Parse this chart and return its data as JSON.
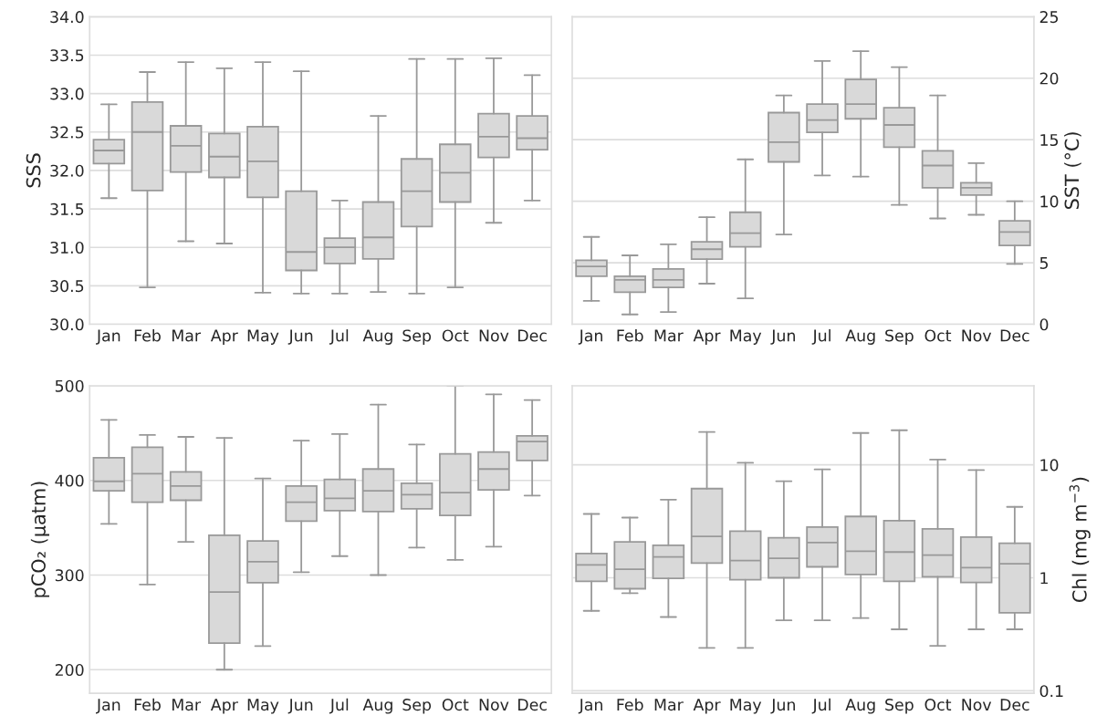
{
  "chart_data": [
    {
      "type": "box",
      "categories": [
        "Jan",
        "Feb",
        "Mar",
        "Apr",
        "May",
        "Jun",
        "Jul",
        "Aug",
        "Sep",
        "Oct",
        "Nov",
        "Dec"
      ],
      "ylabel": "SSS",
      "ylim": [
        30.0,
        34.0
      ],
      "yticks": [
        {
          "value": 30,
          "label": "30.0"
        },
        30.5,
        {
          "value": 31,
          "label": "31.0"
        },
        31.5,
        {
          "value": 32,
          "label": "32.0"
        },
        32.5,
        {
          "value": 33,
          "label": "33.0"
        },
        33.5,
        {
          "value": 34,
          "label": "34.0"
        }
      ],
      "grid": "y",
      "series": [
        {
          "color": "#d9d9d9",
          "axis": "y",
          "boxes": [
            {
              "low": 31.64,
              "q1": 32.09,
              "median": 32.26,
              "q3": 32.4,
              "high": 32.86
            },
            {
              "low": 30.48,
              "q1": 31.74,
              "median": 32.5,
              "q3": 32.89,
              "high": 33.28
            },
            {
              "low": 31.08,
              "q1": 31.98,
              "median": 32.32,
              "q3": 32.58,
              "high": 33.41
            },
            {
              "low": 31.05,
              "q1": 31.91,
              "median": 32.18,
              "q3": 32.48,
              "high": 33.33
            },
            {
              "low": 30.41,
              "q1": 31.65,
              "median": 32.12,
              "q3": 32.57,
              "high": 33.41
            },
            {
              "low": 30.4,
              "q1": 30.7,
              "median": 30.94,
              "q3": 31.73,
              "high": 33.29
            },
            {
              "low": 30.4,
              "q1": 30.79,
              "median": 31.0,
              "q3": 31.12,
              "high": 31.61
            },
            {
              "low": 30.42,
              "q1": 30.85,
              "median": 31.13,
              "q3": 31.59,
              "high": 32.71
            },
            {
              "low": 30.4,
              "q1": 31.27,
              "median": 31.73,
              "q3": 32.15,
              "high": 33.45
            },
            {
              "low": 30.48,
              "q1": 31.59,
              "median": 31.97,
              "q3": 32.34,
              "high": 33.45
            },
            {
              "low": 31.32,
              "q1": 32.17,
              "median": 32.44,
              "q3": 32.74,
              "high": 33.46
            },
            {
              "low": 31.61,
              "q1": 32.27,
              "median": 32.42,
              "q3": 32.71,
              "high": 33.24
            }
          ]
        }
      ]
    },
    {
      "type": "box",
      "categories": [
        "Jan",
        "Feb",
        "Mar",
        "Apr",
        "May",
        "Jun",
        "Jul",
        "Aug",
        "Sep",
        "Oct",
        "Nov",
        "Dec"
      ],
      "y2label": "SST (°C)",
      "y2lim": [
        0,
        25
      ],
      "y2ticks": [
        0,
        5,
        10,
        15,
        20,
        25
      ],
      "grid": "y",
      "series": [
        {
          "color": "#d9d9d9",
          "axis": "y2",
          "boxes": [
            {
              "low": 1.9,
              "q1": 3.9,
              "median": 4.7,
              "q3": 5.2,
              "high": 7.1
            },
            {
              "low": 0.8,
              "q1": 2.6,
              "median": 3.6,
              "q3": 3.9,
              "high": 5.6
            },
            {
              "low": 1.0,
              "q1": 3.0,
              "median": 3.6,
              "q3": 4.5,
              "high": 6.5
            },
            {
              "low": 3.3,
              "q1": 5.3,
              "median": 6.1,
              "q3": 6.7,
              "high": 8.7
            },
            {
              "low": 2.1,
              "q1": 6.3,
              "median": 7.4,
              "q3": 9.1,
              "high": 13.4
            },
            {
              "low": 7.3,
              "q1": 13.2,
              "median": 14.8,
              "q3": 17.2,
              "high": 18.6
            },
            {
              "low": 12.1,
              "q1": 15.6,
              "median": 16.6,
              "q3": 17.9,
              "high": 21.4
            },
            {
              "low": 12.0,
              "q1": 16.7,
              "median": 17.9,
              "q3": 19.9,
              "high": 22.2
            },
            {
              "low": 9.7,
              "q1": 14.4,
              "median": 16.2,
              "q3": 17.6,
              "high": 20.9
            },
            {
              "low": 8.6,
              "q1": 11.1,
              "median": 12.9,
              "q3": 14.1,
              "high": 18.6
            },
            {
              "low": 8.9,
              "q1": 10.5,
              "median": 11.1,
              "q3": 11.5,
              "high": 13.1
            },
            {
              "low": 4.9,
              "q1": 6.4,
              "median": 7.5,
              "q3": 8.4,
              "high": 10.0
            }
          ]
        }
      ]
    },
    {
      "type": "box",
      "categories": [
        "Jan",
        "Feb",
        "Mar",
        "Apr",
        "May",
        "Jun",
        "Jul",
        "Aug",
        "Sep",
        "Oct",
        "Nov",
        "Dec"
      ],
      "ylabel": "pCO₂ (μatm)",
      "ylim": [
        175,
        500
      ],
      "yticks": [
        200,
        300,
        400,
        500
      ],
      "grid": "y",
      "series": [
        {
          "color": "#d9d9d9",
          "axis": "y",
          "boxes": [
            {
              "low": 354,
              "q1": 389,
              "median": 399,
              "q3": 424,
              "high": 464
            },
            {
              "low": 290,
              "q1": 377,
              "median": 407,
              "q3": 435,
              "high": 448
            },
            {
              "low": 335,
              "q1": 379,
              "median": 394,
              "q3": 409,
              "high": 446
            },
            {
              "low": 200,
              "q1": 228,
              "median": 282,
              "q3": 342,
              "high": 445
            },
            {
              "low": 225,
              "q1": 292,
              "median": 314,
              "q3": 336,
              "high": 402
            },
            {
              "low": 303,
              "q1": 357,
              "median": 377,
              "q3": 394,
              "high": 442
            },
            {
              "low": 320,
              "q1": 368,
              "median": 381,
              "q3": 401,
              "high": 449
            },
            {
              "low": 300,
              "q1": 367,
              "median": 389,
              "q3": 412,
              "high": 480
            },
            {
              "low": 329,
              "q1": 370,
              "median": 385,
              "q3": 397,
              "high": 438
            },
            {
              "low": 316,
              "q1": 363,
              "median": 387,
              "q3": 428,
              "high": 500
            },
            {
              "low": 330,
              "q1": 390,
              "median": 412,
              "q3": 430,
              "high": 491
            },
            {
              "low": 384,
              "q1": 421,
              "median": 441,
              "q3": 447,
              "high": 485
            }
          ]
        }
      ]
    },
    {
      "type": "box",
      "categories": [
        "Jan",
        "Feb",
        "Mar",
        "Apr",
        "May",
        "Jun",
        "Jul",
        "Aug",
        "Sep",
        "Oct",
        "Nov",
        "Dec"
      ],
      "y2label": "Chl (mg m$^{−3}$)",
      "log": "y2",
      "y2lim": [
        0.095,
        50
      ],
      "y2ticks": [
        0.1,
        1,
        10
      ],
      "grid": "y",
      "series": [
        {
          "color": "#d9d9d9",
          "axis": "y2",
          "boxes": [
            {
              "low": 0.51,
              "q1": 0.93,
              "median": 1.3,
              "q3": 1.64,
              "high": 3.67
            },
            {
              "low": 0.73,
              "q1": 0.8,
              "median": 1.19,
              "q3": 2.08,
              "high": 3.41
            },
            {
              "low": 0.45,
              "q1": 0.99,
              "median": 1.53,
              "q3": 1.94,
              "high": 4.91
            },
            {
              "low": 0.24,
              "q1": 1.35,
              "median": 2.32,
              "q3": 6.15,
              "high": 19.5
            },
            {
              "low": 0.24,
              "q1": 0.96,
              "median": 1.42,
              "q3": 2.59,
              "high": 10.4
            },
            {
              "low": 0.42,
              "q1": 1.0,
              "median": 1.49,
              "q3": 2.26,
              "high": 7.16
            },
            {
              "low": 0.42,
              "q1": 1.25,
              "median": 2.05,
              "q3": 2.81,
              "high": 9.1
            },
            {
              "low": 0.44,
              "q1": 1.07,
              "median": 1.72,
              "q3": 3.49,
              "high": 19.1
            },
            {
              "low": 0.35,
              "q1": 0.93,
              "median": 1.69,
              "q3": 3.2,
              "high": 20.2
            },
            {
              "low": 0.25,
              "q1": 1.02,
              "median": 1.59,
              "q3": 2.71,
              "high": 11.1
            },
            {
              "low": 0.35,
              "q1": 0.91,
              "median": 1.23,
              "q3": 2.29,
              "high": 8.97
            },
            {
              "low": 0.35,
              "q1": 0.49,
              "median": 1.33,
              "q3": 2.02,
              "high": 4.24
            }
          ]
        }
      ]
    }
  ]
}
